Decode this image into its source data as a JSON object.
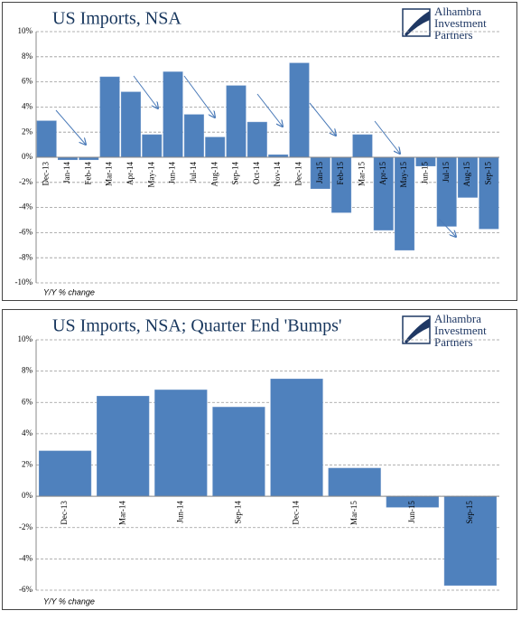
{
  "chart_data": [
    {
      "type": "bar",
      "title": "US Imports, NSA",
      "logo": [
        "Alhambra",
        "Investment",
        "Partners"
      ],
      "axis_note": "Y/Y % change",
      "categories": [
        "Dec-13",
        "Jan-14",
        "Feb-14",
        "Mar-14",
        "Apr-14",
        "May-14",
        "Jun-14",
        "Jul-14",
        "Aug-14",
        "Sep-14",
        "Oct-14",
        "Nov-14",
        "Dec-14",
        "Jan-15",
        "Feb-15",
        "Mar-15",
        "Apr-15",
        "May-15",
        "Jun-15",
        "Jul-15",
        "Aug-15",
        "Sep-15"
      ],
      "values": [
        2.9,
        -0.2,
        -0.2,
        6.4,
        5.2,
        1.8,
        6.8,
        3.4,
        1.6,
        5.7,
        2.8,
        0.2,
        7.5,
        -2.5,
        -4.4,
        1.8,
        -5.8,
        -7.4,
        -0.7,
        -5.5,
        -3.2,
        -5.7
      ],
      "color": "#4f81bd",
      "ylim": [
        -10,
        10
      ],
      "yticks": [
        {
          "value": -10,
          "label": "-10%"
        },
        {
          "value": -8,
          "label": "-8%"
        },
        {
          "value": -6,
          "label": "-6%"
        },
        {
          "value": -4,
          "label": "-4%"
        },
        {
          "value": -2,
          "label": "-2%"
        },
        {
          "value": 0,
          "label": "0%"
        },
        {
          "value": 2,
          "label": "2%"
        },
        {
          "value": 4,
          "label": "4%"
        },
        {
          "value": 6,
          "label": "6%"
        },
        {
          "value": 8,
          "label": "8%"
        },
        {
          "value": 10,
          "label": "10%"
        }
      ],
      "grid": true
    },
    {
      "type": "bar",
      "title": "US Imports, NSA; Quarter End 'Bumps'",
      "logo": [
        "Alhambra",
        "Investment",
        "Partners"
      ],
      "axis_note": "Y/Y % change",
      "categories": [
        "Dec-13",
        "Mar-14",
        "Jun-14",
        "Sep-14",
        "Dec-14",
        "Mar-15",
        "Jun-15",
        "Sep-15"
      ],
      "values": [
        2.9,
        6.4,
        6.8,
        5.7,
        7.5,
        1.8,
        -0.7,
        -5.7
      ],
      "color": "#4f81bd",
      "ylim": [
        -6,
        10
      ],
      "yticks": [
        {
          "value": -6,
          "label": "-6%"
        },
        {
          "value": -4,
          "label": "-4%"
        },
        {
          "value": -2,
          "label": "-2%"
        },
        {
          "value": 0,
          "label": "0%"
        },
        {
          "value": 2,
          "label": "2%"
        },
        {
          "value": 4,
          "label": "4%"
        },
        {
          "value": 6,
          "label": "6%"
        },
        {
          "value": 8,
          "label": "8%"
        },
        {
          "value": 10,
          "label": "10%"
        }
      ],
      "grid": true
    }
  ]
}
